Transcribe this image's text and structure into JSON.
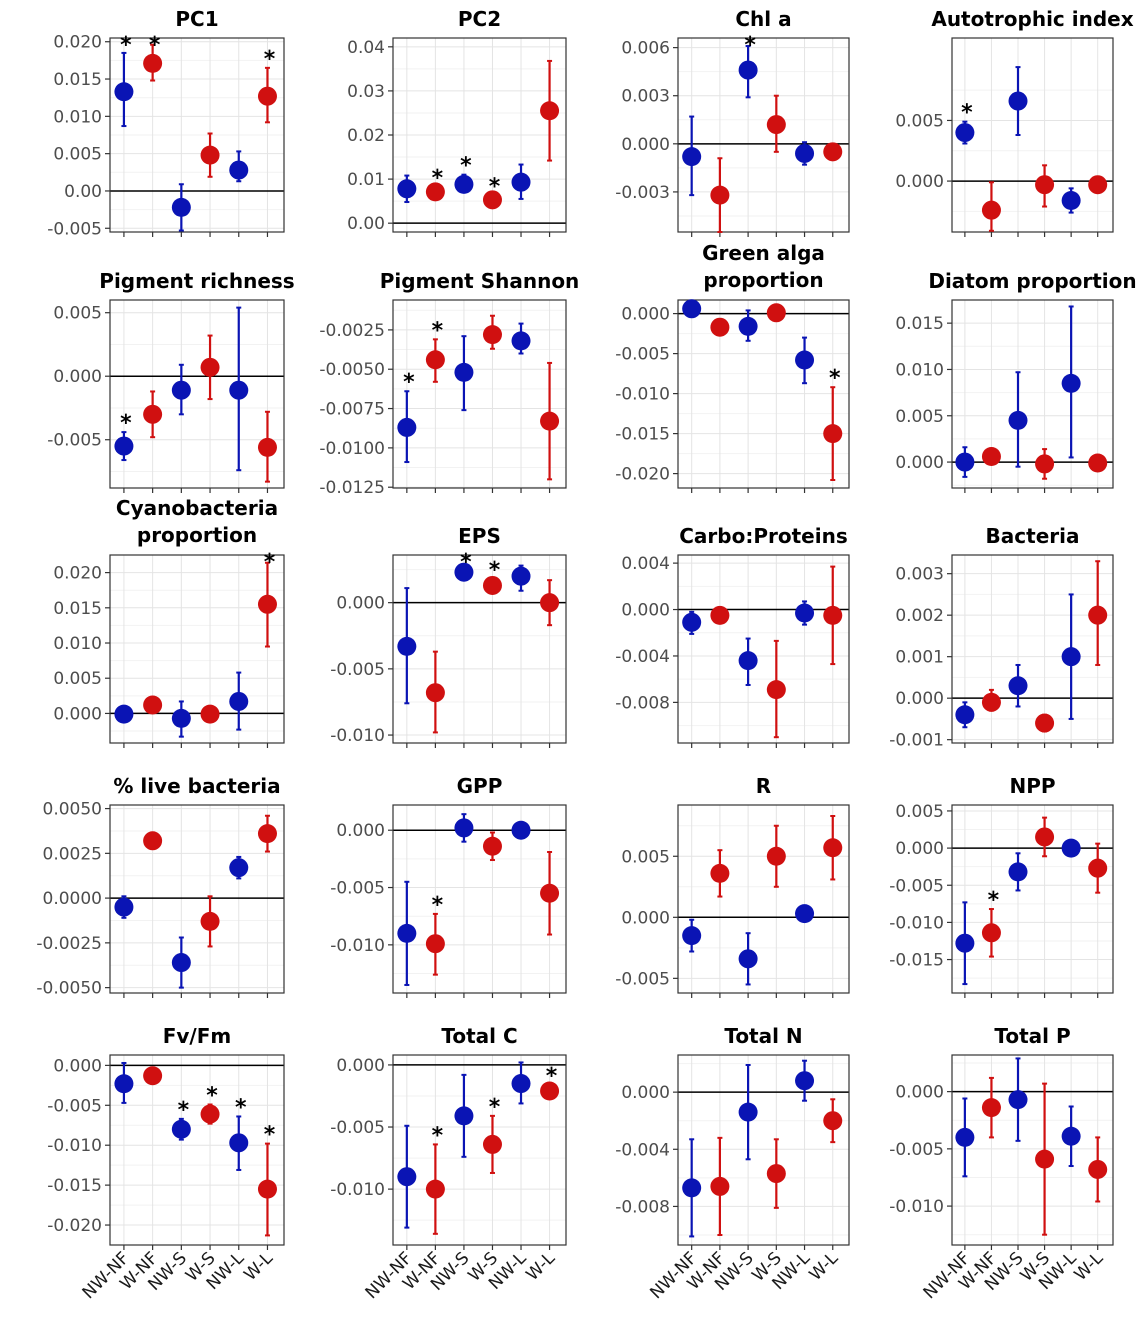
{
  "colors": {
    "NW": "#0a14b4",
    "W": "#d01010"
  },
  "x_categories": [
    "NW-NF",
    "W-NF",
    "NW-S",
    "W-S",
    "NW-L",
    "W-L"
  ],
  "category_group": [
    "NW",
    "W",
    "NW",
    "W",
    "NW",
    "W"
  ],
  "chart_data": [
    {
      "type": "scatter",
      "title": "PC1",
      "ylim": [
        -0.0055,
        0.0205
      ],
      "yticks": [
        -0.005,
        0,
        0.005,
        0.01,
        0.015,
        0.02
      ],
      "ytick_labels": [
        "-0.005",
        "0.00",
        "0.005",
        "0.010",
        "0.015",
        "0.020"
      ],
      "mean": [
        0.0133,
        0.0171,
        -0.0022,
        0.0048,
        0.0028,
        0.0127
      ],
      "lower": [
        0.0087,
        0.0148,
        -0.0053,
        0.0019,
        0.0013,
        0.0092
      ],
      "upper": [
        0.0185,
        0.0196,
        0.0009,
        0.0077,
        0.0053,
        0.0165
      ],
      "sig": [
        true,
        true,
        false,
        false,
        false,
        true
      ]
    },
    {
      "type": "scatter",
      "title": "PC2",
      "ylim": [
        -0.002,
        0.042
      ],
      "yticks": [
        0,
        0.01,
        0.02,
        0.03,
        0.04
      ],
      "ytick_labels": [
        "0.00",
        "0.01",
        "0.02",
        "0.03",
        "0.04"
      ],
      "mean": [
        0.0078,
        0.0071,
        0.0088,
        0.0053,
        0.0093,
        0.0255
      ],
      "lower": [
        0.0048,
        0.006,
        0.007,
        0.0043,
        0.0055,
        0.0142
      ],
      "upper": [
        0.0108,
        0.0082,
        0.011,
        0.0063,
        0.0133,
        0.0368
      ],
      "sig": [
        false,
        true,
        true,
        true,
        false,
        false
      ]
    },
    {
      "type": "scatter",
      "title": "Chl a",
      "ylim": [
        -0.0055,
        0.0066
      ],
      "yticks": [
        -0.003,
        0,
        0.003,
        0.006
      ],
      "ytick_labels": [
        "-0.003",
        "0.000",
        "0.003",
        "0.006"
      ],
      "mean": [
        -0.0008,
        -0.0032,
        0.0046,
        0.0012,
        -0.0006,
        -0.0005
      ],
      "lower": [
        -0.0032,
        -0.0055,
        0.0029,
        -0.0005,
        -0.0013,
        -0.0009
      ],
      "upper": [
        0.0017,
        -0.0009,
        0.0061,
        0.003,
        0.0001,
        -0.0001
      ],
      "sig": [
        false,
        false,
        true,
        false,
        false,
        false
      ]
    },
    {
      "type": "scatter",
      "title": "Autotrophic index",
      "ylim": [
        -0.0042,
        0.0118
      ],
      "yticks": [
        0,
        0.005
      ],
      "ytick_labels": [
        "0.000",
        "0.005"
      ],
      "mean": [
        0.004,
        -0.0024,
        0.0066,
        -0.0003,
        -0.0016,
        -0.0003
      ],
      "lower": [
        0.0031,
        -0.0041,
        0.0038,
        -0.0021,
        -0.0026,
        -0.0007
      ],
      "upper": [
        0.0049,
        -0.0001,
        0.0094,
        0.0013,
        -0.0006,
        0.0001
      ],
      "sig": [
        true,
        false,
        false,
        false,
        false,
        false
      ]
    },
    {
      "type": "scatter",
      "title": "Pigment richness",
      "ylim": [
        -0.0088,
        0.006
      ],
      "yticks": [
        -0.005,
        0,
        0.005
      ],
      "ytick_labels": [
        "-0.005",
        "0.000",
        "0.005"
      ],
      "mean": [
        -0.0055,
        -0.003,
        -0.0011,
        0.0007,
        -0.0011,
        -0.0056
      ],
      "lower": [
        -0.0066,
        -0.0048,
        -0.003,
        -0.0018,
        -0.0074,
        -0.0083
      ],
      "upper": [
        -0.0044,
        -0.0012,
        0.0009,
        0.0032,
        0.0054,
        -0.0028
      ],
      "sig": [
        true,
        false,
        false,
        false,
        false,
        false
      ]
    },
    {
      "type": "scatter",
      "title": "Pigment Shannon",
      "ylim": [
        -0.01255,
        -0.0006
      ],
      "yticks": [
        -0.0125,
        -0.01,
        -0.0075,
        -0.005,
        -0.0025
      ],
      "ytick_labels": [
        "-0.0125",
        "-0.0100",
        "-0.0075",
        "-0.0050",
        "-0.0025"
      ],
      "mean": [
        -0.0087,
        -0.0044,
        -0.0052,
        -0.0028,
        -0.0032,
        -0.0083
      ],
      "lower": [
        -0.0109,
        -0.0058,
        -0.0076,
        -0.0037,
        -0.004,
        -0.012
      ],
      "upper": [
        -0.0064,
        -0.0031,
        -0.0029,
        -0.0016,
        -0.0021,
        -0.0046
      ],
      "sig": [
        true,
        true,
        false,
        false,
        false,
        false
      ]
    },
    {
      "type": "scatter",
      "title": "Green alga proportion",
      "title_lines": [
        "Green alga",
        "proportion"
      ],
      "ylim": [
        -0.0218,
        0.0017
      ],
      "yticks": [
        -0.02,
        -0.015,
        -0.01,
        -0.005,
        0
      ],
      "ytick_labels": [
        "-0.020",
        "-0.015",
        "-0.010",
        "-0.005",
        "0.000"
      ],
      "mean": [
        0.0006,
        -0.0017,
        -0.0016,
        0.0001,
        -0.0058,
        -0.015
      ],
      "lower": [
        0.0003,
        -0.002,
        -0.0034,
        -0.0001,
        -0.0087,
        -0.0208
      ],
      "upper": [
        0.0009,
        -0.0014,
        0.0004,
        0.0003,
        -0.003,
        -0.0092
      ],
      "sig": [
        false,
        false,
        false,
        false,
        false,
        true
      ]
    },
    {
      "type": "scatter",
      "title": "Diatom proportion",
      "ylim": [
        -0.0028,
        0.0175
      ],
      "yticks": [
        0,
        0.005,
        0.01,
        0.015
      ],
      "ytick_labels": [
        "0.000",
        "0.005",
        "0.010",
        "0.015"
      ],
      "mean": [
        0.0,
        0.0006,
        0.0045,
        -0.0002,
        0.0085,
        -0.0001
      ],
      "lower": [
        -0.0016,
        0.0004,
        -0.0005,
        -0.0018,
        0.0005,
        -0.0004
      ],
      "upper": [
        0.0016,
        0.0008,
        0.0097,
        0.0014,
        0.0168,
        0.0002
      ],
      "sig": [
        false,
        false,
        false,
        false,
        false,
        false
      ]
    },
    {
      "type": "scatter",
      "title": "Cyanobacteria proportion",
      "title_lines": [
        "Cyanobacteria",
        "proportion"
      ],
      "ylim": [
        -0.0042,
        0.0225
      ],
      "yticks": [
        0,
        0.005,
        0.01,
        0.015,
        0.02
      ],
      "ytick_labels": [
        "0.000",
        "0.005",
        "0.010",
        "0.015",
        "0.020"
      ],
      "mean": [
        -0.0001,
        0.0012,
        -0.0007,
        -0.0001,
        0.0017,
        0.0155
      ],
      "lower": [
        -0.0004,
        0.0009,
        -0.0033,
        -0.0004,
        -0.0023,
        0.0095
      ],
      "upper": [
        0.0002,
        0.0015,
        0.0017,
        0.0002,
        0.0058,
        0.0214
      ],
      "sig": [
        false,
        false,
        false,
        false,
        false,
        true
      ]
    },
    {
      "type": "scatter",
      "title": "EPS",
      "ylim": [
        -0.0106,
        0.0036
      ],
      "yticks": [
        -0.01,
        -0.005,
        0
      ],
      "ytick_labels": [
        "-0.010",
        "-0.005",
        "0.000"
      ],
      "mean": [
        -0.0033,
        -0.0068,
        0.0023,
        0.0013,
        0.002,
        0.0
      ],
      "lower": [
        -0.0076,
        -0.0098,
        0.0017,
        0.0008,
        0.0009,
        -0.0017
      ],
      "upper": [
        0.0011,
        -0.0037,
        0.0029,
        0.0018,
        0.0028,
        0.0017
      ],
      "sig": [
        false,
        false,
        true,
        true,
        false,
        false
      ]
    },
    {
      "type": "scatter",
      "title": "Carbo:Proteins",
      "ylim": [
        -0.0115,
        0.0047
      ],
      "yticks": [
        -0.008,
        -0.004,
        0,
        0.004
      ],
      "ytick_labels": [
        "-0.008",
        "-0.004",
        "0.000",
        "0.004"
      ],
      "mean": [
        -0.0011,
        -0.0005,
        -0.0044,
        -0.0069,
        -0.0003,
        -0.0005
      ],
      "lower": [
        -0.0021,
        -0.001,
        -0.0065,
        -0.011,
        -0.0013,
        -0.0047
      ],
      "upper": [
        -0.0002,
        0.0,
        -0.0025,
        -0.0027,
        0.0007,
        0.0037
      ],
      "sig": [
        false,
        false,
        false,
        false,
        false,
        false
      ]
    },
    {
      "type": "scatter",
      "title": "Bacteria",
      "ylim": [
        -0.00108,
        0.00345
      ],
      "yticks": [
        -0.001,
        0,
        0.001,
        0.002,
        0.003
      ],
      "ytick_labels": [
        "-0.001",
        "0.000",
        "0.001",
        "0.002",
        "0.003"
      ],
      "mean": [
        -0.0004,
        -0.0001,
        0.0003,
        -0.0006,
        0.001,
        0.002
      ],
      "lower": [
        -0.0007,
        -0.0003,
        -0.0002,
        -0.0008,
        -0.0005,
        0.0008
      ],
      "upper": [
        -0.0001,
        0.0002,
        0.0008,
        -0.0004,
        0.0025,
        0.0033
      ],
      "sig": [
        false,
        false,
        false,
        false,
        false,
        false
      ]
    },
    {
      "type": "scatter",
      "title": "% live bacteria",
      "ylim": [
        -0.0053,
        0.0052
      ],
      "yticks": [
        -0.005,
        -0.0025,
        0,
        0.0025,
        0.005
      ],
      "ytick_labels": [
        "-0.0050",
        "-0.0025",
        "0.0000",
        "0.0025",
        "0.0050"
      ],
      "mean": [
        -0.0005,
        0.0032,
        -0.0036,
        -0.0013,
        0.0017,
        0.0036
      ],
      "lower": [
        -0.0011,
        0.003,
        -0.005,
        -0.0027,
        0.0011,
        0.0026
      ],
      "upper": [
        0.0001,
        0.0034,
        -0.0022,
        0.0001,
        0.0023,
        0.0046
      ],
      "sig": [
        false,
        false,
        false,
        false,
        false,
        false
      ]
    },
    {
      "type": "scatter",
      "title": "GPP",
      "ylim": [
        -0.0142,
        0.0022
      ],
      "yticks": [
        -0.01,
        -0.005,
        0
      ],
      "ytick_labels": [
        "-0.010",
        "-0.005",
        "0.000"
      ],
      "mean": [
        -0.009,
        -0.0099,
        0.0002,
        -0.0014,
        0.0,
        -0.0055
      ],
      "lower": [
        -0.0135,
        -0.0126,
        -0.001,
        -0.0026,
        -0.0002,
        -0.0091
      ],
      "upper": [
        -0.0045,
        -0.0073,
        0.0014,
        -0.0002,
        0.0002,
        -0.0019
      ],
      "sig": [
        false,
        true,
        false,
        false,
        false,
        false
      ]
    },
    {
      "type": "scatter",
      "title": "R",
      "ylim": [
        -0.0062,
        0.0092
      ],
      "yticks": [
        -0.005,
        0,
        0.005
      ],
      "ytick_labels": [
        "-0.005",
        "0.000",
        "0.005"
      ],
      "mean": [
        -0.0015,
        0.0036,
        -0.0034,
        0.005,
        0.0003,
        0.0057
      ],
      "lower": [
        -0.0028,
        0.0017,
        -0.0055,
        0.0025,
        0.0001,
        0.0031
      ],
      "upper": [
        -0.0002,
        0.0055,
        -0.0013,
        0.0075,
        0.0005,
        0.0083
      ],
      "sig": [
        false,
        false,
        false,
        false,
        false,
        false
      ]
    },
    {
      "type": "scatter",
      "title": "NPP",
      "ylim": [
        -0.0195,
        0.0058
      ],
      "yticks": [
        -0.015,
        -0.01,
        -0.005,
        0,
        0.005
      ],
      "ytick_labels": [
        "-0.015",
        "-0.010",
        "-0.005",
        "0.000",
        "0.005"
      ],
      "mean": [
        -0.0128,
        -0.0114,
        -0.0032,
        0.0015,
        0.0,
        -0.0027
      ],
      "lower": [
        -0.0183,
        -0.0146,
        -0.0057,
        -0.0011,
        -0.0002,
        -0.006
      ],
      "upper": [
        -0.0073,
        -0.0082,
        -0.0007,
        0.0041,
        0.0002,
        0.0006
      ],
      "sig": [
        false,
        true,
        false,
        false,
        false,
        false
      ]
    },
    {
      "type": "scatter",
      "title": "Fv/Fm",
      "ylim": [
        -0.0225,
        0.0013
      ],
      "yticks": [
        -0.02,
        -0.015,
        -0.01,
        -0.005,
        0
      ],
      "ytick_labels": [
        "-0.020",
        "-0.015",
        "-0.010",
        "-0.005",
        "0.000"
      ],
      "mean": [
        -0.0023,
        -0.0013,
        -0.008,
        -0.0061,
        -0.0097,
        -0.0155
      ],
      "lower": [
        -0.0047,
        -0.0023,
        -0.0093,
        -0.0073,
        -0.0131,
        -0.0213
      ],
      "upper": [
        0.0003,
        -0.0003,
        -0.0067,
        -0.0049,
        -0.0064,
        -0.0098
      ],
      "sig": [
        false,
        false,
        true,
        true,
        true,
        true
      ]
    },
    {
      "type": "scatter",
      "title": "Total C",
      "ylim": [
        -0.0145,
        0.0008
      ],
      "yticks": [
        -0.01,
        -0.005,
        0
      ],
      "ytick_labels": [
        "-0.010",
        "-0.005",
        "0.000"
      ],
      "mean": [
        -0.009,
        -0.01,
        -0.0041,
        -0.0064,
        -0.0015,
        -0.0021
      ],
      "lower": [
        -0.0131,
        -0.0136,
        -0.0074,
        -0.0087,
        -0.0031,
        -0.0026
      ],
      "upper": [
        -0.0049,
        -0.0064,
        -0.0008,
        -0.0041,
        0.0002,
        -0.0016
      ],
      "sig": [
        false,
        true,
        false,
        true,
        false,
        true
      ]
    },
    {
      "type": "scatter",
      "title": "Total N",
      "ylim": [
        -0.0107,
        0.0026
      ],
      "yticks": [
        -0.008,
        -0.004,
        0
      ],
      "ytick_labels": [
        "-0.008",
        "-0.004",
        "0.000"
      ],
      "mean": [
        -0.0067,
        -0.0066,
        -0.0014,
        -0.0057,
        0.0008,
        -0.002
      ],
      "lower": [
        -0.0101,
        -0.01,
        -0.0047,
        -0.0081,
        -0.0006,
        -0.0035
      ],
      "upper": [
        -0.0033,
        -0.0032,
        0.0019,
        -0.0033,
        0.0022,
        -0.0005
      ],
      "sig": [
        false,
        false,
        false,
        false,
        false,
        false
      ]
    },
    {
      "type": "scatter",
      "title": "Total P",
      "ylim": [
        -0.0134,
        0.0032
      ],
      "yticks": [
        -0.01,
        -0.005,
        0
      ],
      "ytick_labels": [
        "-0.010",
        "-0.005",
        "0.000"
      ],
      "mean": [
        -0.004,
        -0.0014,
        -0.0007,
        -0.0059,
        -0.0039,
        -0.0068
      ],
      "lower": [
        -0.0074,
        -0.004,
        -0.0043,
        -0.0125,
        -0.0065,
        -0.0096
      ],
      "upper": [
        -0.0006,
        0.0012,
        0.0029,
        0.0007,
        -0.0013,
        -0.004
      ],
      "sig": [
        false,
        false,
        false,
        false,
        false,
        false
      ]
    }
  ]
}
